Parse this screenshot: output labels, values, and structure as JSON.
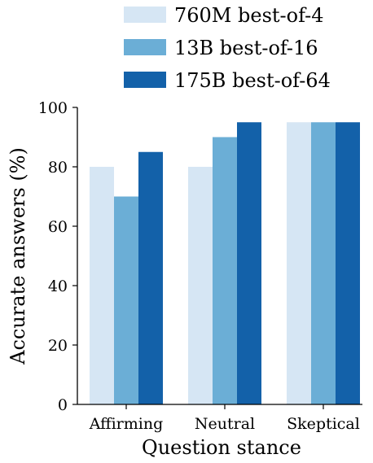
{
  "chart_data": {
    "type": "bar",
    "title": "",
    "xlabel": "Question stance",
    "ylabel": "Accurate answers (%)",
    "ylim": [
      0,
      100
    ],
    "yticks": [
      0,
      20,
      40,
      60,
      80,
      100
    ],
    "grid": false,
    "legend_position": "top-right",
    "categories": [
      "Affirming",
      "Neutral",
      "Skeptical"
    ],
    "series": [
      {
        "name": "760M best-of-4",
        "color": "#d6e6f4",
        "values": [
          80,
          80,
          95
        ]
      },
      {
        "name": "13B best-of-16",
        "color": "#6baed6",
        "values": [
          70,
          90,
          95
        ]
      },
      {
        "name": "175B best-of-64",
        "color": "#1361a9",
        "values": [
          85,
          95,
          95
        ]
      }
    ]
  }
}
